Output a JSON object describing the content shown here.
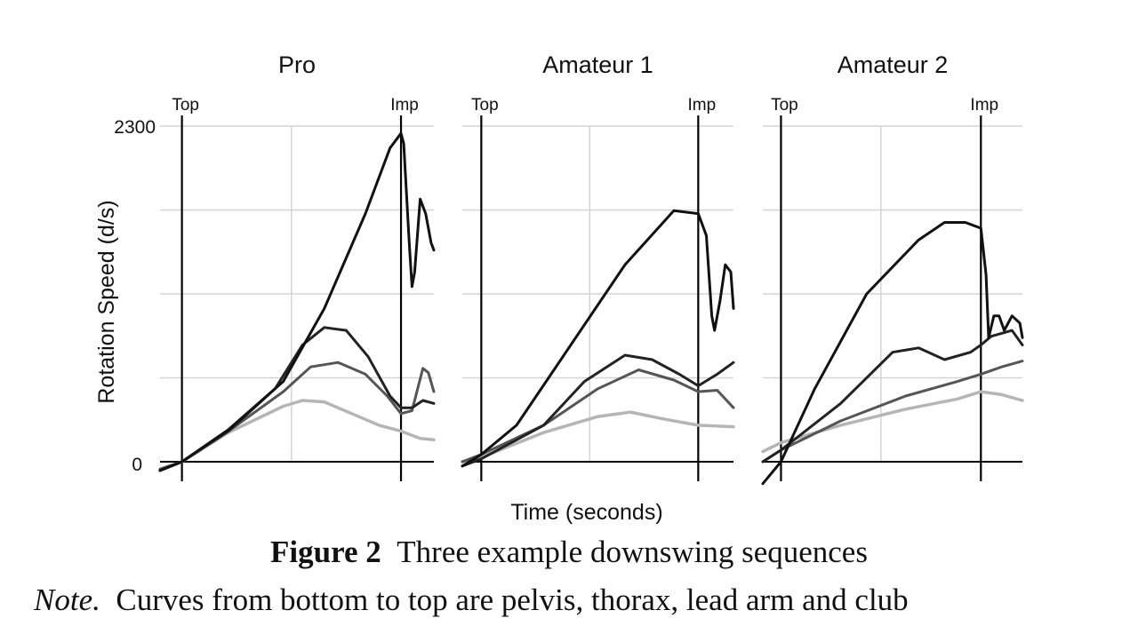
{
  "chart_data": {
    "type": "line",
    "ylabel": "Rotation Speed (d/s)",
    "xlabel": "Time (seconds)",
    "ylim": [
      0,
      2300
    ],
    "yticks": [
      "0",
      "2300"
    ],
    "xlim": [
      0,
      1
    ],
    "grid": true,
    "markers": {
      "top_label": "Top",
      "impact_label": "Imp"
    },
    "panels": [
      {
        "title": "Pro",
        "top_x": 0.08,
        "imp_x": 0.88,
        "series": [
          {
            "name": "pelvis",
            "x": [
              0,
              0.08,
              0.25,
              0.45,
              0.52,
              0.6,
              0.7,
              0.8,
              0.88,
              0.95,
              1.0
            ],
            "values": [
              -60,
              0,
              200,
              380,
              420,
              410,
              330,
              250,
              210,
              160,
              150
            ]
          },
          {
            "name": "thorax",
            "x": [
              0,
              0.08,
              0.25,
              0.45,
              0.55,
              0.65,
              0.75,
              0.83,
              0.88,
              0.92,
              0.96,
              0.98,
              1.0
            ],
            "values": [
              -50,
              0,
              210,
              480,
              650,
              680,
              600,
              450,
              330,
              350,
              640,
              610,
              480
            ]
          },
          {
            "name": "lead arm",
            "x": [
              0,
              0.08,
              0.25,
              0.42,
              0.52,
              0.6,
              0.68,
              0.76,
              0.84,
              0.88,
              0.92,
              0.96,
              1.0
            ],
            "values": [
              -60,
              0,
              210,
              500,
              800,
              920,
              900,
              720,
              450,
              370,
              370,
              420,
              400
            ]
          },
          {
            "name": "club",
            "x": [
              0,
              0.08,
              0.25,
              0.45,
              0.6,
              0.75,
              0.84,
              0.88,
              0.89,
              0.91,
              0.92,
              0.93,
              0.95,
              0.97,
              0.99,
              1.0
            ],
            "values": [
              -60,
              0,
              220,
              550,
              1050,
              1700,
              2150,
              2250,
              2180,
              1500,
              1200,
              1300,
              1800,
              1700,
              1500,
              1450
            ]
          }
        ]
      },
      {
        "title": "Amateur 1",
        "top_x": 0.07,
        "imp_x": 0.87,
        "series": [
          {
            "name": "pelvis",
            "x": [
              0,
              0.07,
              0.3,
              0.5,
              0.62,
              0.75,
              0.87,
              1.0
            ],
            "values": [
              0,
              30,
              200,
              310,
              340,
              290,
              250,
              240
            ]
          },
          {
            "name": "thorax",
            "x": [
              0,
              0.07,
              0.3,
              0.5,
              0.65,
              0.78,
              0.87,
              0.94,
              1.0
            ],
            "values": [
              0,
              50,
              250,
              500,
              630,
              560,
              480,
              490,
              370
            ]
          },
          {
            "name": "lead arm",
            "x": [
              0,
              0.07,
              0.3,
              0.45,
              0.6,
              0.7,
              0.8,
              0.87,
              0.94,
              1.0
            ],
            "values": [
              -30,
              20,
              250,
              550,
              730,
              700,
              600,
              520,
              600,
              680
            ]
          },
          {
            "name": "club",
            "x": [
              0,
              0.07,
              0.2,
              0.4,
              0.6,
              0.78,
              0.87,
              0.9,
              0.92,
              0.93,
              0.95,
              0.97,
              0.99,
              1.0
            ],
            "values": [
              -30,
              50,
              250,
              800,
              1350,
              1720,
              1700,
              1550,
              1000,
              900,
              1100,
              1350,
              1300,
              1050
            ]
          }
        ]
      },
      {
        "title": "Amateur 2",
        "top_x": 0.07,
        "imp_x": 0.84,
        "series": [
          {
            "name": "pelvis",
            "x": [
              0,
              0.07,
              0.3,
              0.55,
              0.75,
              0.84,
              0.92,
              1.0
            ],
            "values": [
              70,
              130,
              250,
              360,
              430,
              480,
              460,
              420
            ]
          },
          {
            "name": "thorax",
            "x": [
              0,
              0.07,
              0.3,
              0.55,
              0.75,
              0.84,
              0.92,
              1.0
            ],
            "values": [
              0,
              80,
              280,
              450,
              550,
              600,
              650,
              690
            ]
          },
          {
            "name": "lead arm",
            "x": [
              0,
              0.07,
              0.3,
              0.5,
              0.6,
              0.7,
              0.8,
              0.84,
              0.88,
              0.92,
              0.96,
              1.0
            ],
            "values": [
              0,
              80,
              400,
              750,
              780,
              700,
              750,
              800,
              860,
              880,
              900,
              800
            ]
          },
          {
            "name": "club",
            "x": [
              0,
              0.07,
              0.2,
              0.4,
              0.6,
              0.7,
              0.78,
              0.84,
              0.86,
              0.87,
              0.89,
              0.91,
              0.93,
              0.96,
              0.99,
              1.0
            ],
            "values": [
              -150,
              0,
              500,
              1150,
              1520,
              1640,
              1640,
              1600,
              1280,
              850,
              1000,
              1000,
              900,
              1000,
              950,
              850
            ]
          }
        ]
      }
    ]
  },
  "caption": {
    "figure_label": "Figure 2",
    "title": "Three example downswing sequences",
    "note_label": "Note.",
    "note_text": "Curves from bottom to top are pelvis, thorax, lead arm and club"
  },
  "colors": {
    "pelvis": "#b5b5b5",
    "thorax": "#555555",
    "lead arm": "#222222",
    "club": "#111111",
    "grid": "#d4d4d4",
    "axis": "#000000"
  }
}
